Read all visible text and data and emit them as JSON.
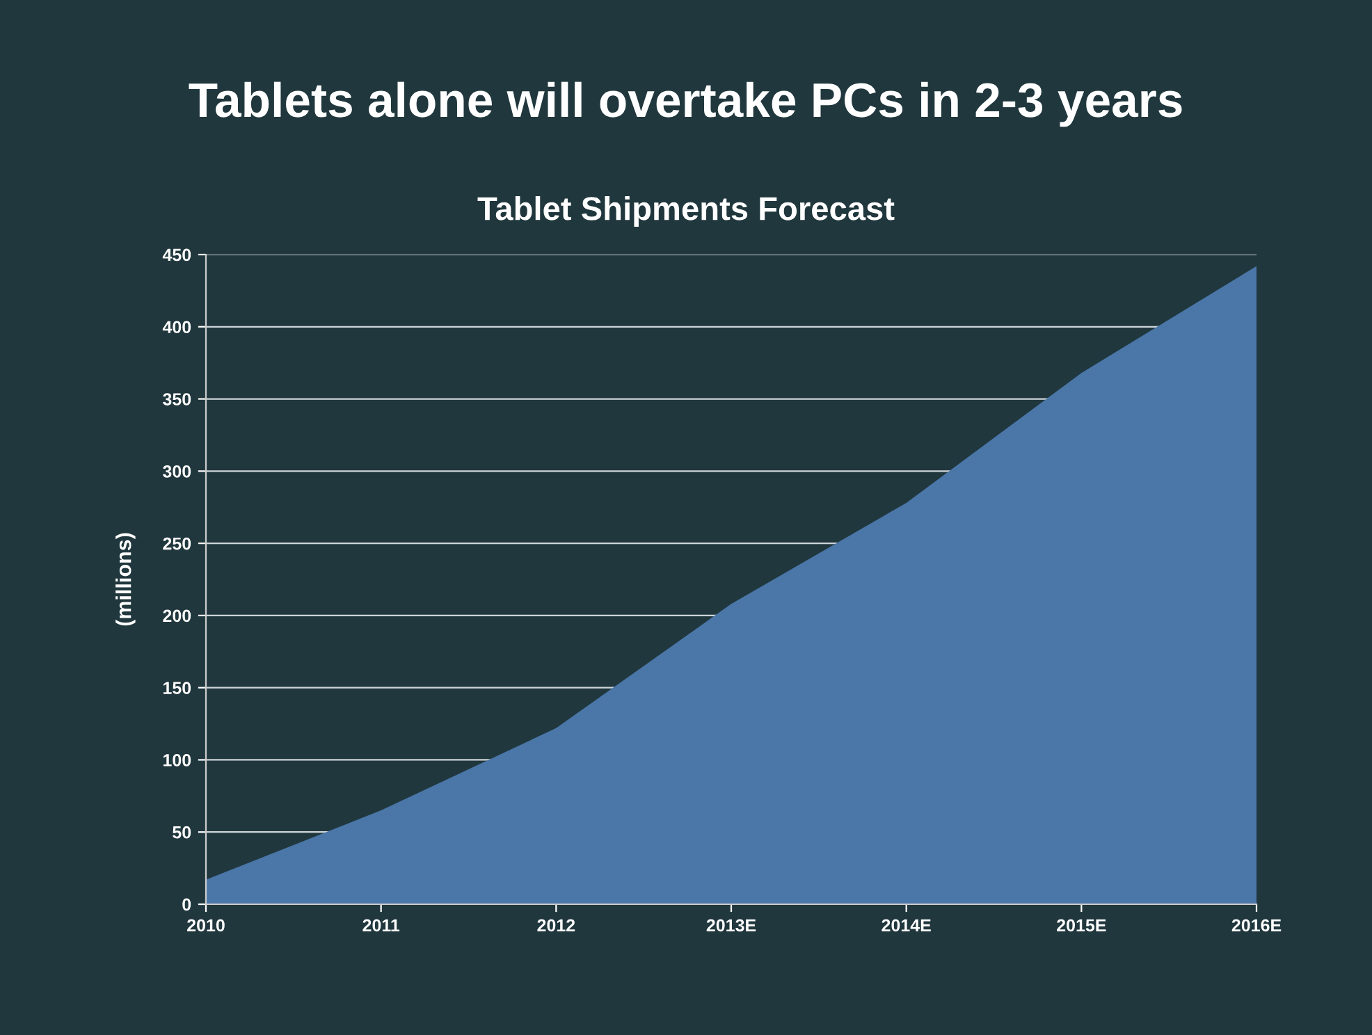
{
  "chart_data": {
    "type": "area",
    "title": "Tablets alone will overtake PCs in 2-3 years",
    "subtitle": "Tablet Shipments Forecast",
    "ylabel": "(millions)",
    "categories": [
      "2010",
      "2011",
      "2012",
      "2013E",
      "2014E",
      "2015E",
      "2016E"
    ],
    "series": [
      {
        "color": "#4a76a8",
        "values": [
          17,
          65,
          122,
          208,
          278,
          368,
          442
        ]
      }
    ],
    "ylim": [
      0,
      450
    ],
    "yticks": [
      0,
      50,
      100,
      150,
      200,
      250,
      300,
      350,
      400,
      450
    ],
    "grid": "y",
    "legend": false
  }
}
